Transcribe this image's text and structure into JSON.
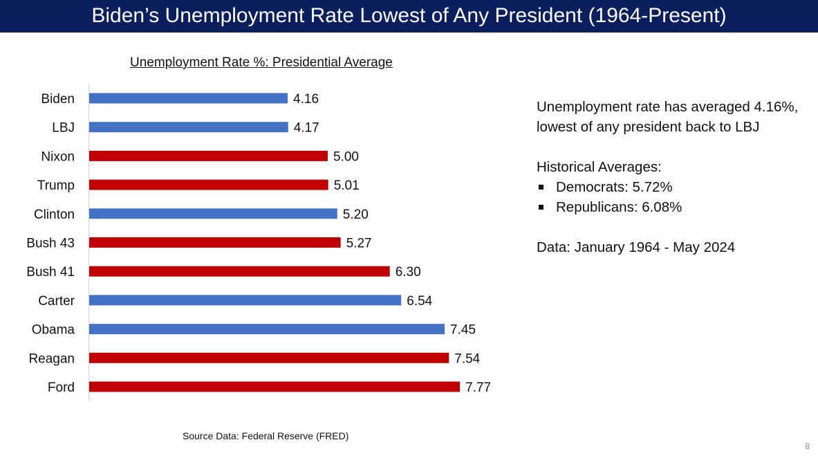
{
  "header": {
    "title": "Biden’s Unemployment Rate Lowest of Any President (1964-Present)"
  },
  "chart_data": {
    "type": "bar",
    "orientation": "horizontal",
    "title": "Unemployment Rate %:  Presidential Average",
    "categories": [
      "Biden",
      "LBJ",
      "Nixon",
      "Trump",
      "Clinton",
      "Bush 43",
      "Bush 41",
      "Carter",
      "Obama",
      "Reagan",
      "Ford"
    ],
    "values": [
      4.16,
      4.17,
      5.0,
      5.01,
      5.2,
      5.27,
      6.3,
      6.54,
      7.45,
      7.54,
      7.77
    ],
    "value_labels": [
      "4.16",
      "4.17",
      "5.00",
      "5.01",
      "5.20",
      "5.27",
      "6.30",
      "6.54",
      "7.45",
      "7.54",
      "7.77"
    ],
    "party": [
      "D",
      "D",
      "R",
      "R",
      "D",
      "R",
      "R",
      "D",
      "D",
      "R",
      "R"
    ],
    "colors": {
      "D": "#4472c4",
      "R": "#c00000"
    },
    "xlim": [
      0,
      8
    ],
    "xlabel": "",
    "ylabel": "",
    "grid": false
  },
  "side": {
    "summary": "Unemployment rate has averaged 4.16%, lowest of any president back to LBJ",
    "hist_heading": "Historical Averages:",
    "hist_items": [
      "Democrats:  5.72%",
      "Republicans:  6.08%"
    ],
    "data_range": "Data: January 1964 - May 2024"
  },
  "footer": {
    "source": "Source Data:  Federal Reserve (FRED)",
    "page_number": "8"
  }
}
